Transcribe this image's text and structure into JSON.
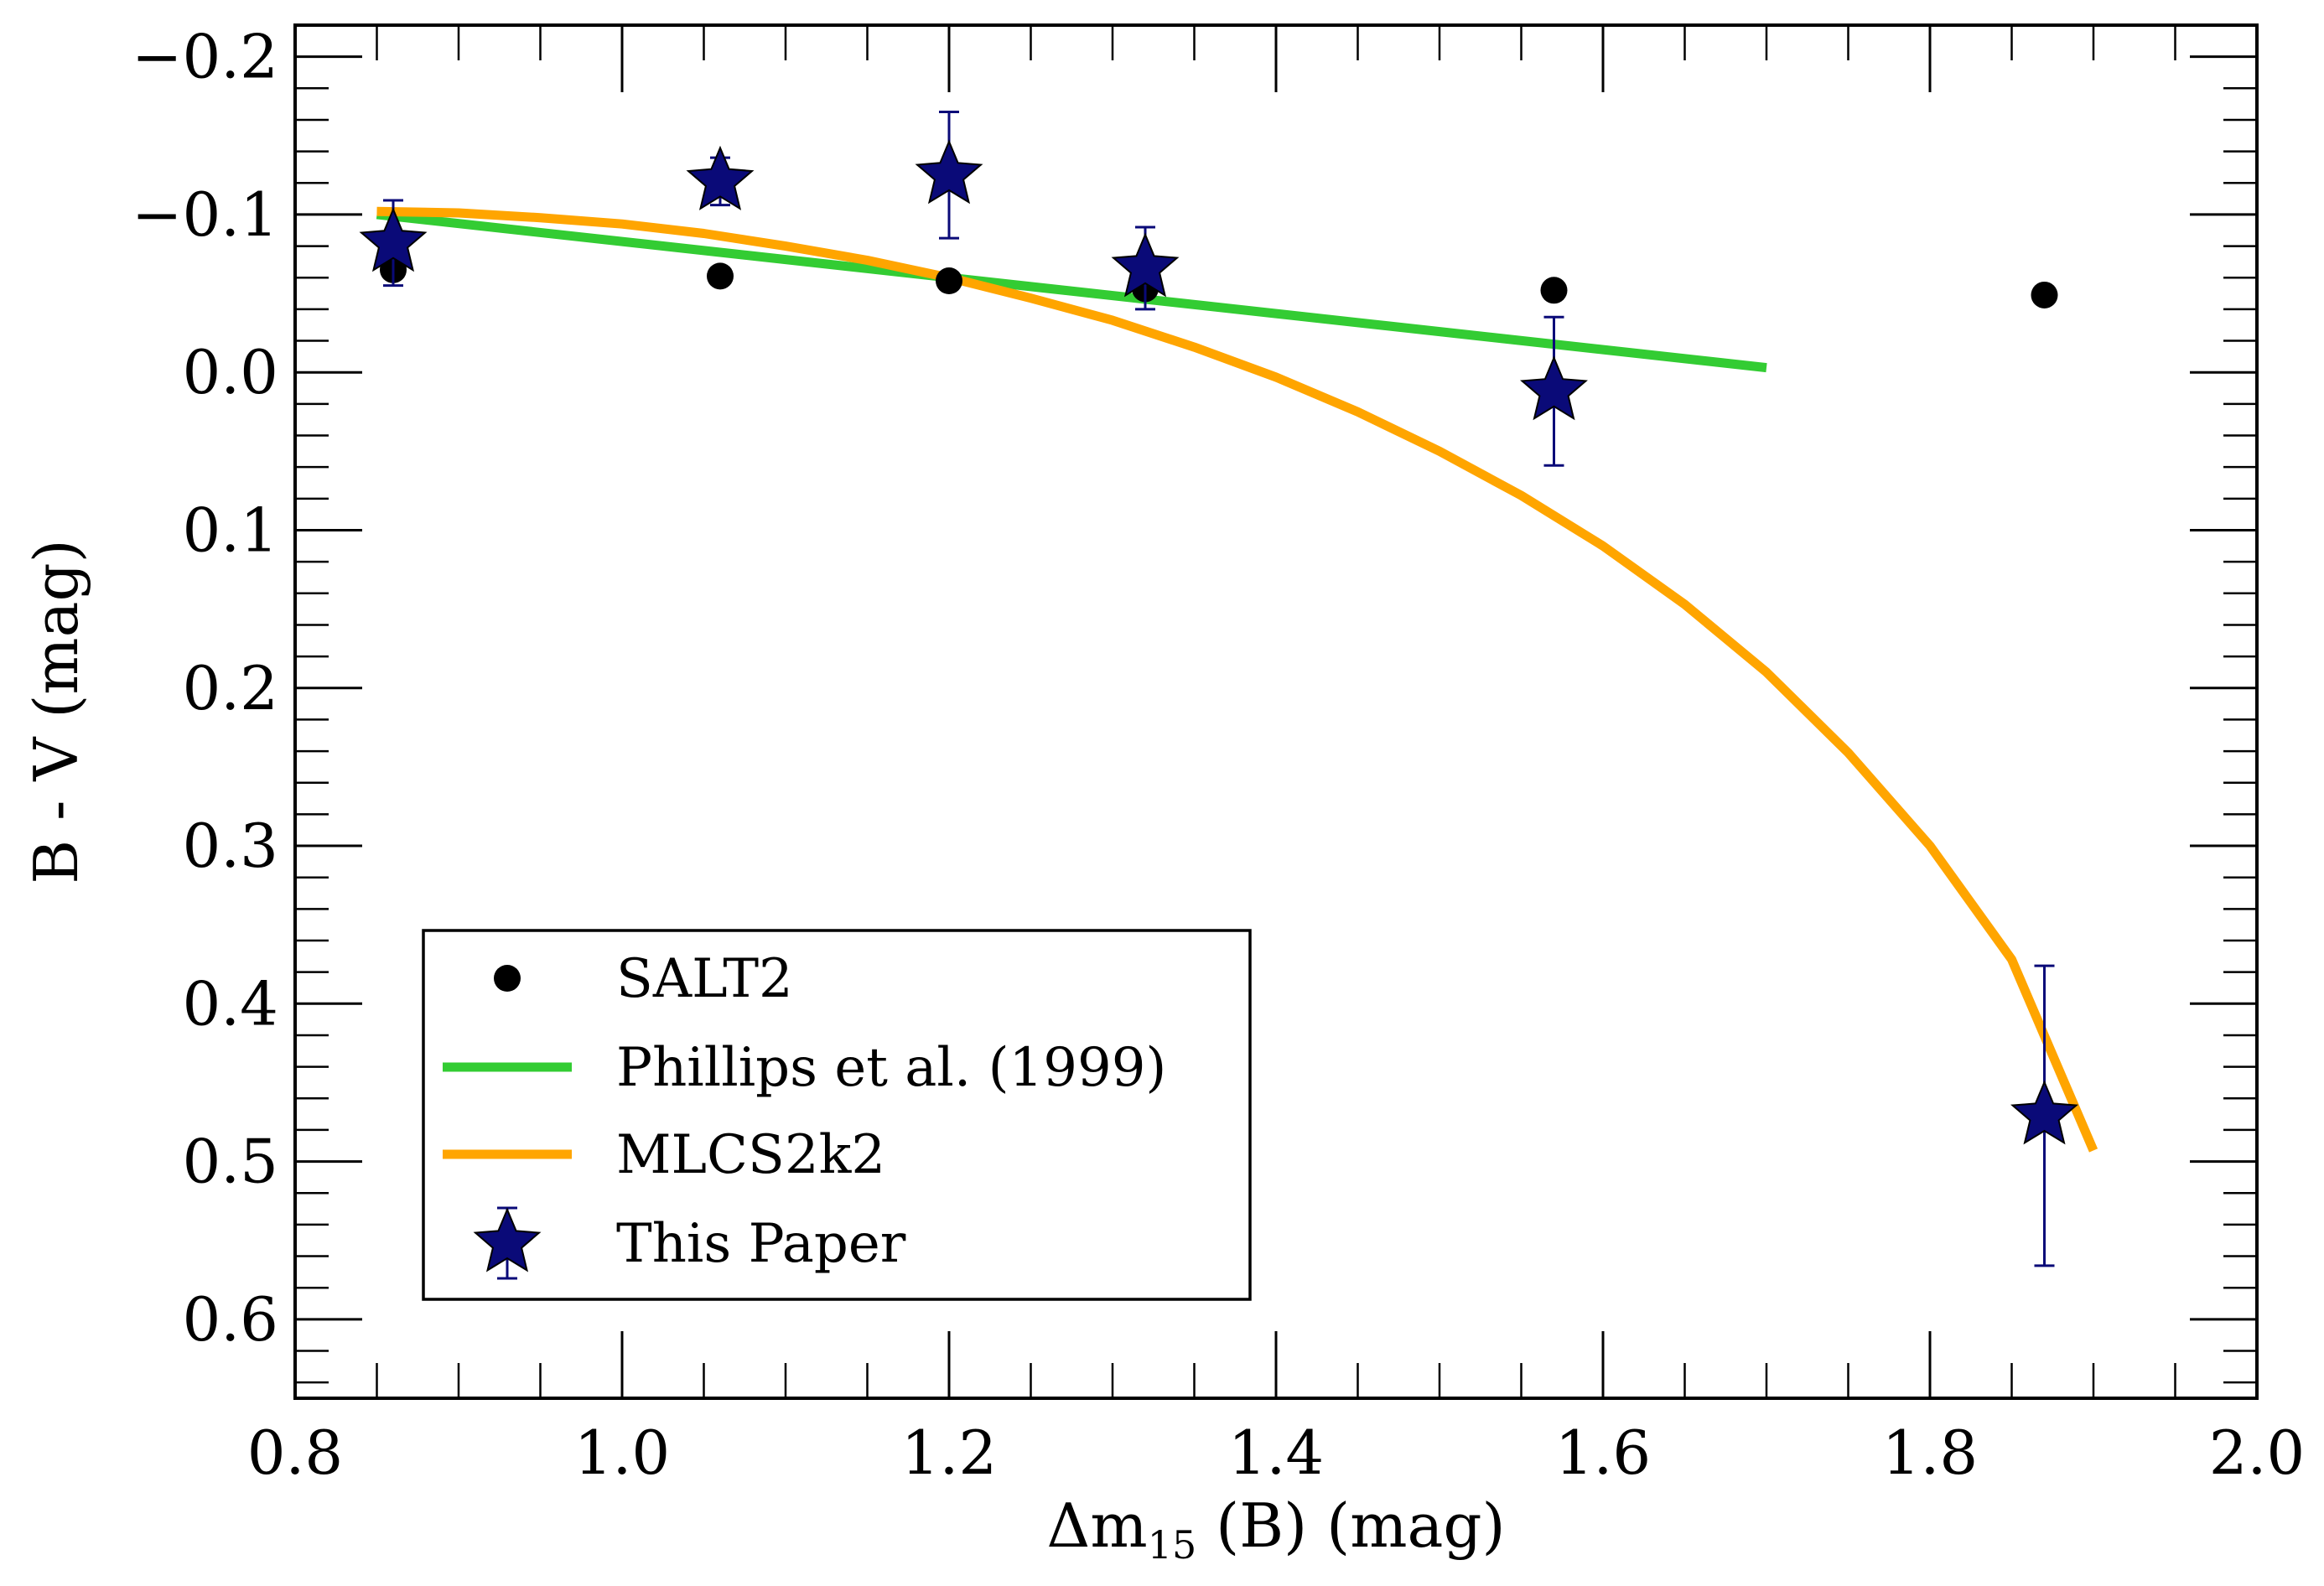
{
  "chart_data": {
    "type": "scatter",
    "xlabel": {
      "prefix": "Δm",
      "sub": "15",
      "suffix": " (B) (mag)"
    },
    "ylabel": "B - V (mag)",
    "xlim": [
      0.8,
      2.0
    ],
    "ylim": [
      0.65,
      -0.22
    ],
    "y_inverted": true,
    "x_ticks": [
      "0.8",
      "1.0",
      "1.2",
      "1.4",
      "1.6",
      "1.8",
      "2.0"
    ],
    "y_ticks": [
      "−0.2",
      "−0.1",
      "0.0",
      "0.1",
      "0.2",
      "0.3",
      "0.4",
      "0.5",
      "0.6"
    ],
    "grid": false,
    "legend_position": "lower-left",
    "series": [
      {
        "name": "SALT2",
        "kind": "scatter",
        "marker": "circle",
        "color": "#000000",
        "x": [
          0.86,
          1.06,
          1.2,
          1.32,
          1.57,
          1.87
        ],
        "y": [
          -0.065,
          -0.061,
          -0.058,
          -0.053,
          -0.052,
          -0.049
        ]
      },
      {
        "name": "Phillips et al. (1999)",
        "kind": "line",
        "color": "#33cc33",
        "x": [
          0.85,
          1.7
        ],
        "y": [
          -0.1,
          -0.003
        ]
      },
      {
        "name": "MLCS2k2",
        "kind": "curve",
        "color": "#ffa500",
        "x": [
          0.85,
          0.9,
          0.95,
          1.0,
          1.05,
          1.1,
          1.15,
          1.2,
          1.25,
          1.3,
          1.35,
          1.4,
          1.45,
          1.5,
          1.55,
          1.6,
          1.65,
          1.7,
          1.75,
          1.8,
          1.85,
          1.9
        ],
        "y": [
          -0.102,
          -0.101,
          -0.098,
          -0.094,
          -0.088,
          -0.08,
          -0.071,
          -0.06,
          -0.047,
          -0.033,
          -0.016,
          0.003,
          0.025,
          0.05,
          0.078,
          0.11,
          0.147,
          0.19,
          0.241,
          0.3,
          0.372,
          0.493
        ]
      },
      {
        "name": "This Paper",
        "kind": "scatter_err",
        "marker": "star",
        "color": "#0a0a78",
        "x": [
          0.86,
          1.06,
          1.2,
          1.32,
          1.57,
          1.87
        ],
        "y": [
          -0.082,
          -0.121,
          -0.125,
          -0.066,
          0.012,
          0.471
        ],
        "yerr": [
          0.027,
          0.015,
          0.04,
          0.026,
          0.047,
          0.095
        ]
      }
    ]
  }
}
